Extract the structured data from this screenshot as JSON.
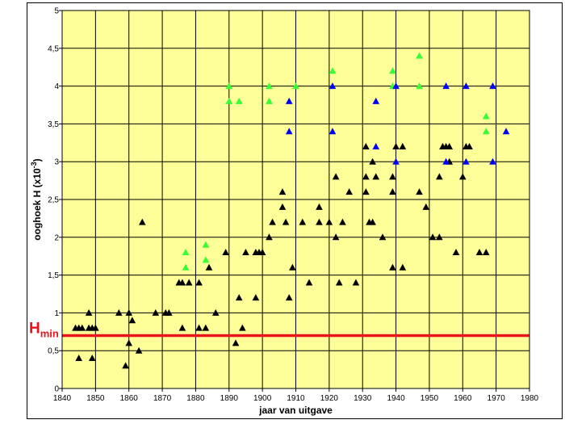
{
  "chart_data": {
    "type": "scatter",
    "xlabel": "jaar van uitgave",
    "ylabel": "ooghoek H  (x10",
    "ylabel_exp": "-3",
    "ylabel_close": ")",
    "xlim": [
      1840,
      1980
    ],
    "ylim": [
      0,
      5
    ],
    "x_ticks": [
      1840,
      1850,
      1860,
      1870,
      1880,
      1890,
      1900,
      1910,
      1920,
      1930,
      1940,
      1950,
      1960,
      1970,
      1980
    ],
    "y_ticks": [
      0,
      0.5,
      1,
      1.5,
      2,
      2.5,
      3,
      3.5,
      4,
      4.5,
      5
    ],
    "y_tick_labels": [
      "0",
      "0,5",
      "1",
      "1,5",
      "2",
      "2,5",
      "3",
      "3,5",
      "4",
      "4,5",
      "5"
    ],
    "grid": true,
    "plot_background": "#ffff99",
    "marker": "triangle",
    "reference_line": {
      "y": 0.7,
      "color": "#e8141c",
      "label": "H",
      "label_sub": "min"
    },
    "series": [
      {
        "color": "#000000",
        "points": [
          [
            1844,
            0.8
          ],
          [
            1845,
            0.8
          ],
          [
            1845,
            0.4
          ],
          [
            1846,
            0.8
          ],
          [
            1848,
            1.0
          ],
          [
            1848,
            0.8
          ],
          [
            1849,
            0.8
          ],
          [
            1849,
            0.4
          ],
          [
            1850,
            0.8
          ],
          [
            1857,
            1.0
          ],
          [
            1859,
            0.3
          ],
          [
            1860,
            1.0
          ],
          [
            1860,
            0.6
          ],
          [
            1861,
            0.9
          ],
          [
            1863,
            0.5
          ],
          [
            1864,
            2.2
          ],
          [
            1868,
            1.0
          ],
          [
            1871,
            1.0
          ],
          [
            1872,
            1.0
          ],
          [
            1875,
            1.4
          ],
          [
            1876,
            1.4
          ],
          [
            1876,
            0.8
          ],
          [
            1878,
            1.4
          ],
          [
            1881,
            1.4
          ],
          [
            1881,
            0.8
          ],
          [
            1883,
            0.8
          ],
          [
            1884,
            1.6
          ],
          [
            1886,
            1.0
          ],
          [
            1889,
            1.8
          ],
          [
            1892,
            0.6
          ],
          [
            1893,
            1.2
          ],
          [
            1894,
            0.8
          ],
          [
            1895,
            1.8
          ],
          [
            1898,
            1.8
          ],
          [
            1898,
            1.2
          ],
          [
            1899,
            1.8
          ],
          [
            1900,
            1.8
          ],
          [
            1902,
            2.0
          ],
          [
            1903,
            2.2
          ],
          [
            1906,
            2.6
          ],
          [
            1906,
            2.4
          ],
          [
            1907,
            2.2
          ],
          [
            1908,
            1.2
          ],
          [
            1909,
            1.6
          ],
          [
            1912,
            2.2
          ],
          [
            1914,
            1.4
          ],
          [
            1917,
            2.4
          ],
          [
            1917,
            2.2
          ],
          [
            1920,
            2.2
          ],
          [
            1922,
            2.8
          ],
          [
            1922,
            2.0
          ],
          [
            1923,
            1.4
          ],
          [
            1924,
            2.2
          ],
          [
            1926,
            2.6
          ],
          [
            1928,
            1.4
          ],
          [
            1931,
            3.2
          ],
          [
            1931,
            2.8
          ],
          [
            1931,
            2.6
          ],
          [
            1932,
            2.2
          ],
          [
            1933,
            3.0
          ],
          [
            1933,
            2.2
          ],
          [
            1934,
            2.8
          ],
          [
            1936,
            2.0
          ],
          [
            1939,
            2.8
          ],
          [
            1939,
            2.6
          ],
          [
            1939,
            1.6
          ],
          [
            1940,
            3.2
          ],
          [
            1942,
            3.2
          ],
          [
            1942,
            1.6
          ],
          [
            1947,
            2.6
          ],
          [
            1949,
            2.4
          ],
          [
            1951,
            2.0
          ],
          [
            1953,
            2.0
          ],
          [
            1953,
            2.8
          ],
          [
            1954,
            3.2
          ],
          [
            1955,
            3.2
          ],
          [
            1956,
            3.0
          ],
          [
            1956,
            3.2
          ],
          [
            1958,
            1.8
          ],
          [
            1960,
            2.8
          ],
          [
            1961,
            3.2
          ],
          [
            1962,
            3.2
          ],
          [
            1965,
            1.8
          ],
          [
            1967,
            1.8
          ]
        ]
      },
      {
        "color": "#33ff33",
        "points": [
          [
            1877,
            1.8
          ],
          [
            1877,
            1.6
          ],
          [
            1883,
            1.9
          ],
          [
            1883,
            1.7
          ],
          [
            1890,
            4.0
          ],
          [
            1890,
            3.8
          ],
          [
            1893,
            3.8
          ],
          [
            1902,
            4.0
          ],
          [
            1902,
            3.8
          ],
          [
            1910,
            4.0
          ],
          [
            1921,
            4.2
          ],
          [
            1939,
            4.2
          ],
          [
            1939,
            4.0
          ],
          [
            1947,
            4.4
          ],
          [
            1947,
            4.0
          ],
          [
            1967,
            3.6
          ],
          [
            1967,
            3.4
          ]
        ]
      },
      {
        "color": "#0000ff",
        "points": [
          [
            1908,
            3.8
          ],
          [
            1908,
            3.4
          ],
          [
            1921,
            4.0
          ],
          [
            1921,
            3.4
          ],
          [
            1934,
            3.8
          ],
          [
            1934,
            3.2
          ],
          [
            1940,
            4.0
          ],
          [
            1940,
            3.0
          ],
          [
            1955,
            4.0
          ],
          [
            1955,
            3.0
          ],
          [
            1961,
            4.0
          ],
          [
            1961,
            3.0
          ],
          [
            1969,
            4.0
          ],
          [
            1969,
            3.0
          ],
          [
            1973,
            3.4
          ]
        ]
      }
    ]
  }
}
